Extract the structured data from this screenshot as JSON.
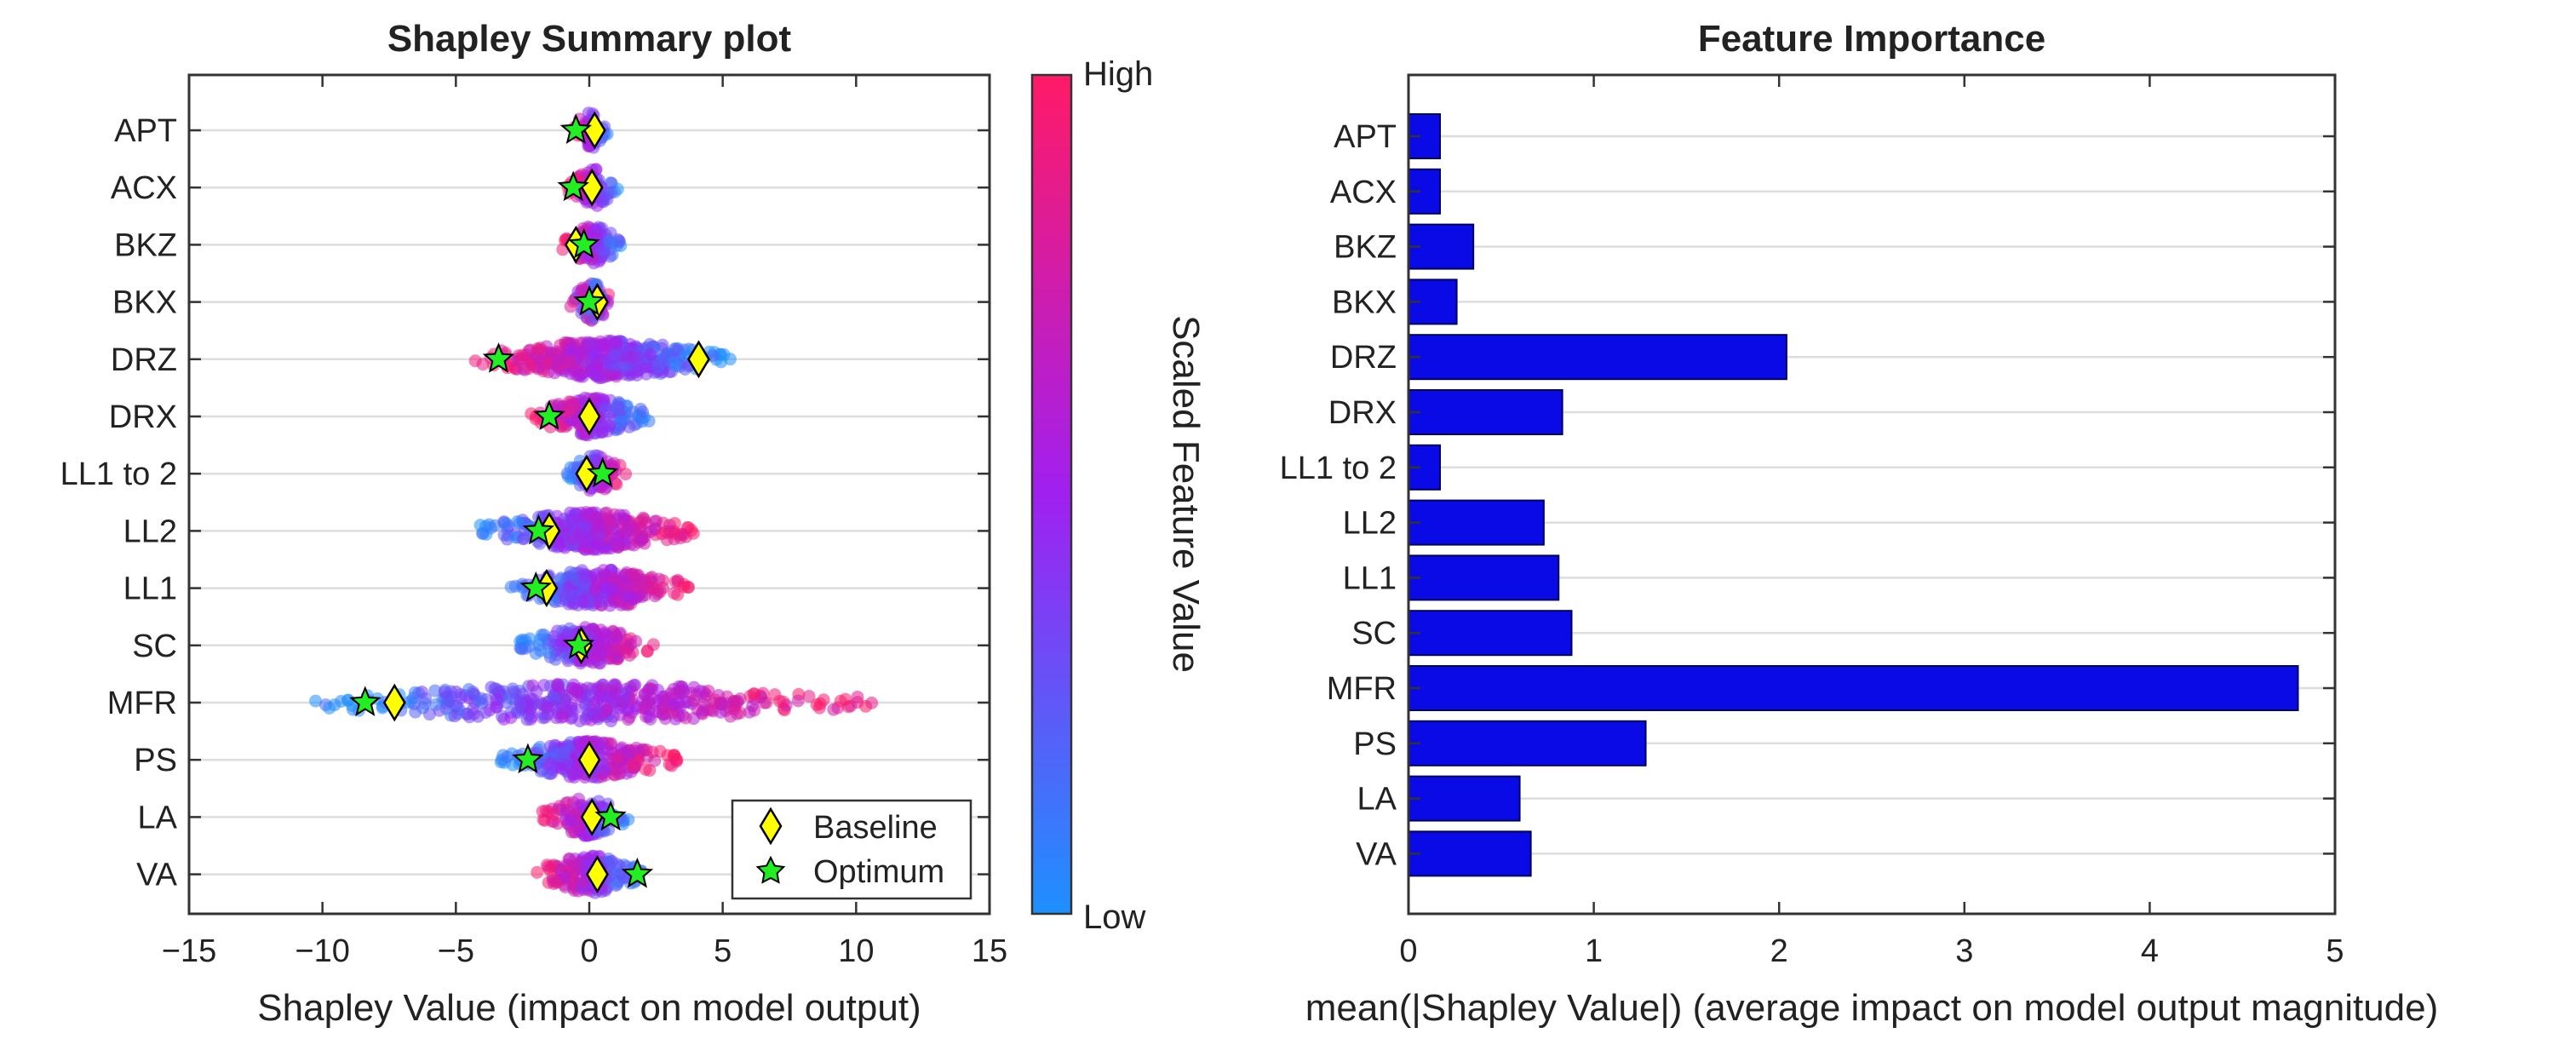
{
  "chart_data": [
    {
      "type": "scatter",
      "title": "Shapley Summary plot",
      "xlabel": "Shapley Value (impact on model output)",
      "ylabel": "",
      "xlim": [
        -15,
        15
      ],
      "xticks": [
        -15,
        -10,
        -5,
        0,
        5,
        10,
        15
      ],
      "xtick_labels": [
        "−15",
        "−10",
        "−5",
        "0",
        "5",
        "10",
        "15"
      ],
      "grid": "horizontal",
      "features": [
        "APT",
        "ACX",
        "BKZ",
        "BKX",
        "DRZ",
        "DRX",
        "LL1 to 2",
        "LL2",
        "LL1",
        "SC",
        "MFR",
        "PS",
        "LA",
        "VA"
      ],
      "distribution": [
        {
          "feature": "APT",
          "min": -0.6,
          "max": 0.7,
          "high_side": "low"
        },
        {
          "feature": "ACX",
          "min": -0.8,
          "max": 1.1,
          "high_side": "low"
        },
        {
          "feature": "BKZ",
          "min": -1.0,
          "max": 1.3,
          "high_side": "low"
        },
        {
          "feature": "BKX",
          "min": -0.7,
          "max": 0.9,
          "high_side": "mixed"
        },
        {
          "feature": "DRZ",
          "min": -4.3,
          "max": 5.3,
          "high_side": "low"
        },
        {
          "feature": "DRX",
          "min": -2.2,
          "max": 2.3,
          "high_side": "low"
        },
        {
          "feature": "LL1 to 2",
          "min": -0.9,
          "max": 1.4,
          "high_side": "high"
        },
        {
          "feature": "LL2",
          "min": -4.2,
          "max": 4.0,
          "high_side": "high"
        },
        {
          "feature": "LL1",
          "min": -3.0,
          "max": 3.9,
          "high_side": "high"
        },
        {
          "feature": "SC",
          "min": -2.6,
          "max": 2.5,
          "high_side": "high"
        },
        {
          "feature": "MFR",
          "min": -10.4,
          "max": 10.6,
          "high_side": "high"
        },
        {
          "feature": "PS",
          "min": -3.5,
          "max": 3.4,
          "high_side": "high"
        },
        {
          "feature": "LA",
          "min": -1.8,
          "max": 1.5,
          "high_side": "low"
        },
        {
          "feature": "VA",
          "min": -2.1,
          "max": 2.1,
          "high_side": "low"
        }
      ],
      "baseline": {
        "name": "Baseline",
        "values": [
          0.2,
          0.1,
          -0.5,
          0.3,
          4.1,
          0.0,
          -0.1,
          -1.5,
          -1.6,
          -0.3,
          -7.3,
          0.0,
          0.1,
          0.3
        ]
      },
      "optimum": {
        "name": "Optimum",
        "values": [
          -0.5,
          -0.6,
          -0.2,
          0.0,
          -3.4,
          -1.5,
          0.5,
          -1.9,
          -2.0,
          -0.4,
          -8.4,
          -2.3,
          0.8,
          1.8
        ]
      },
      "legend": {
        "position": "bottom-right",
        "entries": [
          "Baseline",
          "Optimum"
        ]
      },
      "colorbar": {
        "title": "Scaled Feature Value",
        "high_label": "High",
        "low_label": "Low",
        "high_color": "#ff1a66",
        "mid_color": "#a020f0",
        "low_color": "#1e90ff"
      }
    },
    {
      "type": "bar",
      "orientation": "horizontal",
      "title": "Feature Importance",
      "xlabel": "mean(|Shapley Value|) (average impact on model output magnitude)",
      "ylabel": "",
      "xlim": [
        0,
        5
      ],
      "xticks": [
        0,
        1,
        2,
        3,
        4,
        5
      ],
      "xtick_labels": [
        "0",
        "1",
        "2",
        "3",
        "4",
        "5"
      ],
      "grid": "horizontal",
      "categories": [
        "APT",
        "ACX",
        "BKZ",
        "BKX",
        "DRZ",
        "DRX",
        "LL1 to 2",
        "LL2",
        "LL1",
        "SC",
        "MFR",
        "PS",
        "LA",
        "VA"
      ],
      "values": [
        0.17,
        0.17,
        0.35,
        0.26,
        2.04,
        0.83,
        0.17,
        0.73,
        0.81,
        0.88,
        4.8,
        1.28,
        0.6,
        0.66
      ],
      "bar_color": "#0a0ae6"
    }
  ]
}
